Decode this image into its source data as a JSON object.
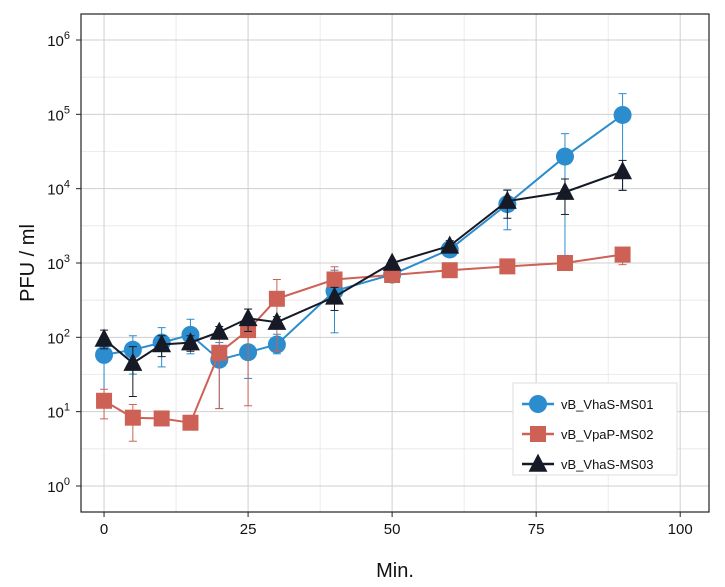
{
  "chart_data": {
    "type": "line",
    "xlabel": "Min.",
    "ylabel": "PFU / ml",
    "xlim": [
      -4,
      105
    ],
    "ylim_log10": [
      -0.35,
      6.35
    ],
    "y_scale": "log10",
    "x_ticks": [
      {
        "value": 0,
        "label": "0"
      },
      {
        "value": 25,
        "label": "25"
      },
      {
        "value": 50,
        "label": "50"
      },
      {
        "value": 75,
        "label": "75"
      },
      {
        "value": 100,
        "label": "100"
      }
    ],
    "y_ticks": [
      {
        "exp": 0,
        "base": "10",
        "sup": "0"
      },
      {
        "exp": 1,
        "base": "10",
        "sup": "1"
      },
      {
        "exp": 2,
        "base": "10",
        "sup": "2"
      },
      {
        "exp": 3,
        "base": "10",
        "sup": "3"
      },
      {
        "exp": 4,
        "base": "10",
        "sup": "4"
      },
      {
        "exp": 5,
        "base": "10",
        "sup": "5"
      },
      {
        "exp": 6,
        "base": "10",
        "sup": "6"
      }
    ],
    "grid": true,
    "legend_position": "bottom-right",
    "series": [
      {
        "name": "vB_VhaS-MS01",
        "color": "#2b8cce",
        "marker": "circle",
        "points": [
          {
            "x": 0,
            "y": 58,
            "lo": 15,
            "hi": 95
          },
          {
            "x": 5,
            "y": 68,
            "lo": 32,
            "hi": 105
          },
          {
            "x": 10,
            "y": 85,
            "lo": 40,
            "hi": 135
          },
          {
            "x": 15,
            "y": 108,
            "lo": 60,
            "hi": 175
          },
          {
            "x": 20,
            "y": 50,
            "lo": 11,
            "hi": 85
          },
          {
            "x": 25,
            "y": 63,
            "lo": 28,
            "hi": 195
          },
          {
            "x": 30,
            "y": 80,
            "lo": 60,
            "hi": 110
          },
          {
            "x": 40,
            "y": 420,
            "lo": 115,
            "hi": 800
          },
          {
            "x": 50,
            "y": 700,
            "lo": 580,
            "hi": 830
          },
          {
            "x": 60,
            "y": 1520,
            "lo": 1250,
            "hi": 1800
          },
          {
            "x": 70,
            "y": 6200,
            "lo": 2800,
            "hi": 9500
          },
          {
            "x": 80,
            "y": 27000,
            "lo": 1200,
            "hi": 55000
          },
          {
            "x": 90,
            "y": 98000,
            "lo": 9500,
            "hi": 190000
          }
        ]
      },
      {
        "name": "vB_VpaP-MS02",
        "color": "#cd6155",
        "marker": "square",
        "points": [
          {
            "x": 0,
            "y": 14,
            "lo": 8,
            "hi": 20
          },
          {
            "x": 5,
            "y": 8.3,
            "lo": 4,
            "hi": 12.5
          },
          {
            "x": 10,
            "y": 8.1,
            "lo": 7.5,
            "hi": 8.8
          },
          {
            "x": 15,
            "y": 7.1,
            "lo": 6.5,
            "hi": 7.6
          },
          {
            "x": 20,
            "y": 62,
            "lo": 11,
            "hi": 110
          },
          {
            "x": 25,
            "y": 125,
            "lo": 12,
            "hi": 240
          },
          {
            "x": 30,
            "y": 330,
            "lo": 65,
            "hi": 600
          },
          {
            "x": 40,
            "y": 600,
            "lo": 380,
            "hi": 890
          },
          {
            "x": 50,
            "y": 690,
            "lo": 600,
            "hi": 780
          },
          {
            "x": 60,
            "y": 800,
            "lo": 750,
            "hi": 860
          },
          {
            "x": 70,
            "y": 900,
            "lo": 850,
            "hi": 950
          },
          {
            "x": 80,
            "y": 1000,
            "lo": 900,
            "hi": 1100
          },
          {
            "x": 90,
            "y": 1300,
            "lo": 950,
            "hi": 1550
          }
        ]
      },
      {
        "name": "vB_VhaS-MS03",
        "color": "#151a26",
        "marker": "triangle",
        "points": [
          {
            "x": 0,
            "y": 95,
            "lo": 70,
            "hi": 125
          },
          {
            "x": 5,
            "y": 45,
            "lo": 16,
            "hi": 75
          },
          {
            "x": 10,
            "y": 80,
            "lo": 55,
            "hi": 105
          },
          {
            "x": 15,
            "y": 85,
            "lo": 65,
            "hi": 105
          },
          {
            "x": 20,
            "y": 118,
            "lo": 95,
            "hi": 140
          },
          {
            "x": 25,
            "y": 180,
            "lo": 120,
            "hi": 240
          },
          {
            "x": 30,
            "y": 160,
            "lo": 130,
            "hi": 190
          },
          {
            "x": 40,
            "y": 350,
            "lo": 230,
            "hi": 470
          },
          {
            "x": 50,
            "y": 1000,
            "lo": 900,
            "hi": 1100
          },
          {
            "x": 60,
            "y": 1700,
            "lo": 1400,
            "hi": 2000
          },
          {
            "x": 70,
            "y": 6800,
            "lo": 4000,
            "hi": 9600
          },
          {
            "x": 80,
            "y": 9000,
            "lo": 4500,
            "hi": 13500
          },
          {
            "x": 90,
            "y": 17000,
            "lo": 9500,
            "hi": 24000
          }
        ]
      }
    ]
  }
}
